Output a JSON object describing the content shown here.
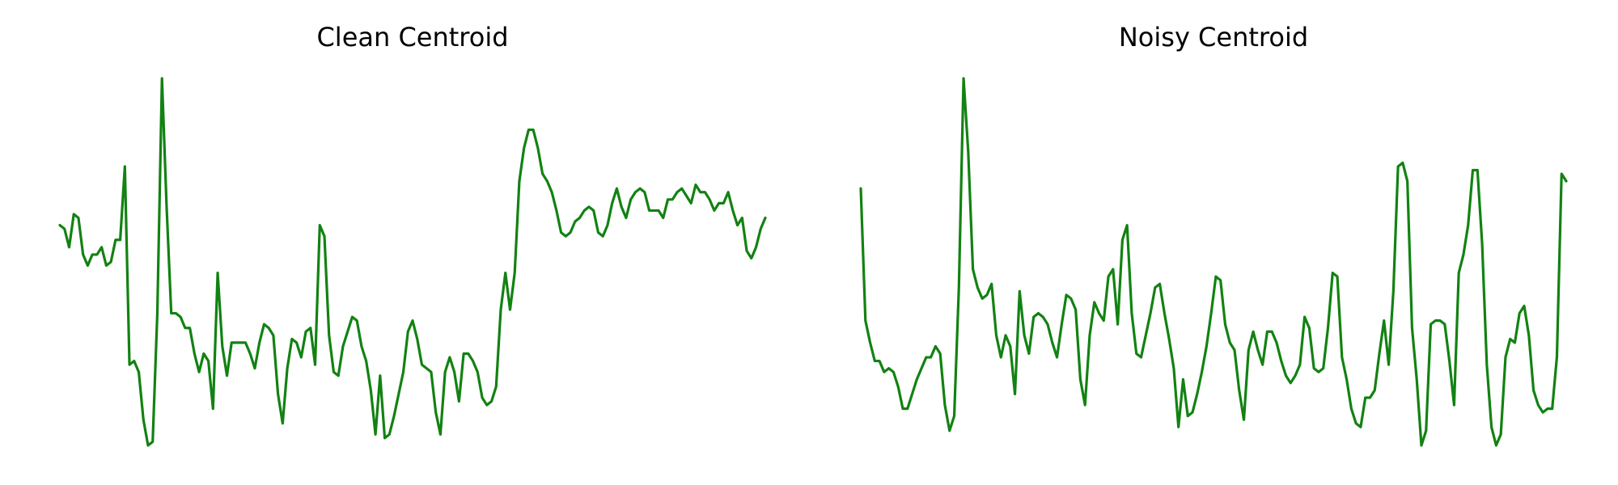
{
  "colors": {
    "background": "#ffffff",
    "line": "#128212",
    "title": "#000000"
  },
  "chart_data": [
    {
      "type": "line",
      "title": "Clean Centroid",
      "xlabel": "",
      "ylabel": "",
      "axes_visible": false,
      "grid": false,
      "legend": "none",
      "ylim": [
        0,
        1
      ],
      "series": [
        {
          "color": "#128212",
          "values": [
            0.6,
            0.59,
            0.54,
            0.63,
            0.62,
            0.52,
            0.49,
            0.52,
            0.52,
            0.54,
            0.49,
            0.5,
            0.56,
            0.56,
            0.76,
            0.22,
            0.23,
            0.2,
            0.07,
            0.0,
            0.01,
            0.36,
            1.0,
            0.65,
            0.36,
            0.36,
            0.35,
            0.32,
            0.32,
            0.25,
            0.2,
            0.25,
            0.23,
            0.1,
            0.47,
            0.27,
            0.19,
            0.28,
            0.28,
            0.28,
            0.28,
            0.25,
            0.21,
            0.28,
            0.33,
            0.32,
            0.3,
            0.14,
            0.06,
            0.21,
            0.29,
            0.28,
            0.24,
            0.31,
            0.32,
            0.22,
            0.6,
            0.57,
            0.3,
            0.2,
            0.19,
            0.27,
            0.31,
            0.35,
            0.34,
            0.27,
            0.23,
            0.15,
            0.03,
            0.19,
            0.02,
            0.03,
            0.08,
            0.14,
            0.2,
            0.31,
            0.34,
            0.29,
            0.22,
            0.21,
            0.2,
            0.09,
            0.03,
            0.2,
            0.24,
            0.2,
            0.12,
            0.25,
            0.25,
            0.23,
            0.2,
            0.13,
            0.11,
            0.12,
            0.16,
            0.37,
            0.47,
            0.37,
            0.47,
            0.72,
            0.81,
            0.86,
            0.86,
            0.81,
            0.74,
            0.72,
            0.69,
            0.64,
            0.58,
            0.57,
            0.58,
            0.61,
            0.62,
            0.64,
            0.65,
            0.64,
            0.58,
            0.57,
            0.6,
            0.66,
            0.7,
            0.65,
            0.62,
            0.67,
            0.69,
            0.7,
            0.69,
            0.64,
            0.64,
            0.64,
            0.62,
            0.67,
            0.67,
            0.69,
            0.7,
            0.68,
            0.66,
            0.71,
            0.69,
            0.69,
            0.67,
            0.64,
            0.66,
            0.66,
            0.69,
            0.64,
            0.6,
            0.62,
            0.53,
            0.51,
            0.54,
            0.59,
            0.62
          ]
        }
      ]
    },
    {
      "type": "line",
      "title": "Noisy Centroid",
      "xlabel": "",
      "ylabel": "",
      "axes_visible": false,
      "grid": false,
      "legend": "none",
      "ylim": [
        0,
        1
      ],
      "series": [
        {
          "color": "#128212",
          "values": [
            0.7,
            0.34,
            0.28,
            0.23,
            0.23,
            0.2,
            0.21,
            0.2,
            0.16,
            0.1,
            0.1,
            0.14,
            0.18,
            0.21,
            0.24,
            0.24,
            0.27,
            0.25,
            0.11,
            0.04,
            0.08,
            0.43,
            1.0,
            0.8,
            0.48,
            0.43,
            0.4,
            0.41,
            0.44,
            0.3,
            0.24,
            0.3,
            0.27,
            0.14,
            0.42,
            0.3,
            0.25,
            0.35,
            0.36,
            0.35,
            0.33,
            0.28,
            0.24,
            0.33,
            0.41,
            0.4,
            0.37,
            0.18,
            0.11,
            0.3,
            0.39,
            0.36,
            0.34,
            0.46,
            0.48,
            0.33,
            0.56,
            0.6,
            0.36,
            0.25,
            0.24,
            0.3,
            0.36,
            0.43,
            0.44,
            0.36,
            0.29,
            0.21,
            0.05,
            0.18,
            0.08,
            0.09,
            0.14,
            0.2,
            0.27,
            0.36,
            0.46,
            0.45,
            0.33,
            0.28,
            0.26,
            0.15,
            0.07,
            0.26,
            0.31,
            0.26,
            0.22,
            0.31,
            0.31,
            0.28,
            0.23,
            0.19,
            0.17,
            0.19,
            0.22,
            0.35,
            0.32,
            0.21,
            0.2,
            0.21,
            0.32,
            0.47,
            0.46,
            0.24,
            0.18,
            0.1,
            0.06,
            0.05,
            0.13,
            0.13,
            0.15,
            0.25,
            0.34,
            0.22,
            0.42,
            0.76,
            0.77,
            0.72,
            0.32,
            0.18,
            0.0,
            0.04,
            0.33,
            0.34,
            0.34,
            0.33,
            0.23,
            0.11,
            0.47,
            0.52,
            0.6,
            0.75,
            0.75,
            0.55,
            0.22,
            0.05,
            0.0,
            0.03,
            0.24,
            0.29,
            0.28,
            0.36,
            0.38,
            0.3,
            0.15,
            0.11,
            0.09,
            0.1,
            0.1,
            0.24,
            0.74,
            0.72
          ]
        }
      ]
    }
  ]
}
